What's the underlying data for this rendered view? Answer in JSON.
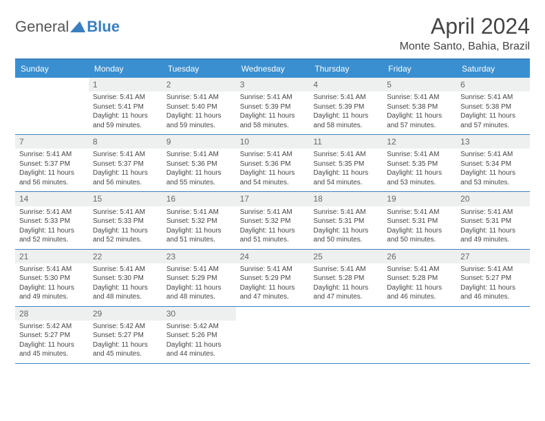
{
  "brand": {
    "t1": "General",
    "t2": "Blue"
  },
  "header": {
    "title": "April 2024",
    "subtitle": "Monte Santo, Bahia, Brazil"
  },
  "dow": [
    "Sunday",
    "Monday",
    "Tuesday",
    "Wednesday",
    "Thursday",
    "Friday",
    "Saturday"
  ],
  "colors": {
    "accent": "#3a8fd0",
    "border": "#3a7fc0",
    "num_bg": "#eef0f0"
  },
  "weeks": [
    [
      null,
      {
        "n": "1",
        "sr": "Sunrise: 5:41 AM",
        "ss": "Sunset: 5:41 PM",
        "d1": "Daylight: 11 hours",
        "d2": "and 59 minutes."
      },
      {
        "n": "2",
        "sr": "Sunrise: 5:41 AM",
        "ss": "Sunset: 5:40 PM",
        "d1": "Daylight: 11 hours",
        "d2": "and 59 minutes."
      },
      {
        "n": "3",
        "sr": "Sunrise: 5:41 AM",
        "ss": "Sunset: 5:39 PM",
        "d1": "Daylight: 11 hours",
        "d2": "and 58 minutes."
      },
      {
        "n": "4",
        "sr": "Sunrise: 5:41 AM",
        "ss": "Sunset: 5:39 PM",
        "d1": "Daylight: 11 hours",
        "d2": "and 58 minutes."
      },
      {
        "n": "5",
        "sr": "Sunrise: 5:41 AM",
        "ss": "Sunset: 5:38 PM",
        "d1": "Daylight: 11 hours",
        "d2": "and 57 minutes."
      },
      {
        "n": "6",
        "sr": "Sunrise: 5:41 AM",
        "ss": "Sunset: 5:38 PM",
        "d1": "Daylight: 11 hours",
        "d2": "and 57 minutes."
      }
    ],
    [
      {
        "n": "7",
        "sr": "Sunrise: 5:41 AM",
        "ss": "Sunset: 5:37 PM",
        "d1": "Daylight: 11 hours",
        "d2": "and 56 minutes."
      },
      {
        "n": "8",
        "sr": "Sunrise: 5:41 AM",
        "ss": "Sunset: 5:37 PM",
        "d1": "Daylight: 11 hours",
        "d2": "and 56 minutes."
      },
      {
        "n": "9",
        "sr": "Sunrise: 5:41 AM",
        "ss": "Sunset: 5:36 PM",
        "d1": "Daylight: 11 hours",
        "d2": "and 55 minutes."
      },
      {
        "n": "10",
        "sr": "Sunrise: 5:41 AM",
        "ss": "Sunset: 5:36 PM",
        "d1": "Daylight: 11 hours",
        "d2": "and 54 minutes."
      },
      {
        "n": "11",
        "sr": "Sunrise: 5:41 AM",
        "ss": "Sunset: 5:35 PM",
        "d1": "Daylight: 11 hours",
        "d2": "and 54 minutes."
      },
      {
        "n": "12",
        "sr": "Sunrise: 5:41 AM",
        "ss": "Sunset: 5:35 PM",
        "d1": "Daylight: 11 hours",
        "d2": "and 53 minutes."
      },
      {
        "n": "13",
        "sr": "Sunrise: 5:41 AM",
        "ss": "Sunset: 5:34 PM",
        "d1": "Daylight: 11 hours",
        "d2": "and 53 minutes."
      }
    ],
    [
      {
        "n": "14",
        "sr": "Sunrise: 5:41 AM",
        "ss": "Sunset: 5:33 PM",
        "d1": "Daylight: 11 hours",
        "d2": "and 52 minutes."
      },
      {
        "n": "15",
        "sr": "Sunrise: 5:41 AM",
        "ss": "Sunset: 5:33 PM",
        "d1": "Daylight: 11 hours",
        "d2": "and 52 minutes."
      },
      {
        "n": "16",
        "sr": "Sunrise: 5:41 AM",
        "ss": "Sunset: 5:32 PM",
        "d1": "Daylight: 11 hours",
        "d2": "and 51 minutes."
      },
      {
        "n": "17",
        "sr": "Sunrise: 5:41 AM",
        "ss": "Sunset: 5:32 PM",
        "d1": "Daylight: 11 hours",
        "d2": "and 51 minutes."
      },
      {
        "n": "18",
        "sr": "Sunrise: 5:41 AM",
        "ss": "Sunset: 5:31 PM",
        "d1": "Daylight: 11 hours",
        "d2": "and 50 minutes."
      },
      {
        "n": "19",
        "sr": "Sunrise: 5:41 AM",
        "ss": "Sunset: 5:31 PM",
        "d1": "Daylight: 11 hours",
        "d2": "and 50 minutes."
      },
      {
        "n": "20",
        "sr": "Sunrise: 5:41 AM",
        "ss": "Sunset: 5:31 PM",
        "d1": "Daylight: 11 hours",
        "d2": "and 49 minutes."
      }
    ],
    [
      {
        "n": "21",
        "sr": "Sunrise: 5:41 AM",
        "ss": "Sunset: 5:30 PM",
        "d1": "Daylight: 11 hours",
        "d2": "and 49 minutes."
      },
      {
        "n": "22",
        "sr": "Sunrise: 5:41 AM",
        "ss": "Sunset: 5:30 PM",
        "d1": "Daylight: 11 hours",
        "d2": "and 48 minutes."
      },
      {
        "n": "23",
        "sr": "Sunrise: 5:41 AM",
        "ss": "Sunset: 5:29 PM",
        "d1": "Daylight: 11 hours",
        "d2": "and 48 minutes."
      },
      {
        "n": "24",
        "sr": "Sunrise: 5:41 AM",
        "ss": "Sunset: 5:29 PM",
        "d1": "Daylight: 11 hours",
        "d2": "and 47 minutes."
      },
      {
        "n": "25",
        "sr": "Sunrise: 5:41 AM",
        "ss": "Sunset: 5:28 PM",
        "d1": "Daylight: 11 hours",
        "d2": "and 47 minutes."
      },
      {
        "n": "26",
        "sr": "Sunrise: 5:41 AM",
        "ss": "Sunset: 5:28 PM",
        "d1": "Daylight: 11 hours",
        "d2": "and 46 minutes."
      },
      {
        "n": "27",
        "sr": "Sunrise: 5:41 AM",
        "ss": "Sunset: 5:27 PM",
        "d1": "Daylight: 11 hours",
        "d2": "and 46 minutes."
      }
    ],
    [
      {
        "n": "28",
        "sr": "Sunrise: 5:42 AM",
        "ss": "Sunset: 5:27 PM",
        "d1": "Daylight: 11 hours",
        "d2": "and 45 minutes."
      },
      {
        "n": "29",
        "sr": "Sunrise: 5:42 AM",
        "ss": "Sunset: 5:27 PM",
        "d1": "Daylight: 11 hours",
        "d2": "and 45 minutes."
      },
      {
        "n": "30",
        "sr": "Sunrise: 5:42 AM",
        "ss": "Sunset: 5:26 PM",
        "d1": "Daylight: 11 hours",
        "d2": "and 44 minutes."
      },
      null,
      null,
      null,
      null
    ]
  ]
}
